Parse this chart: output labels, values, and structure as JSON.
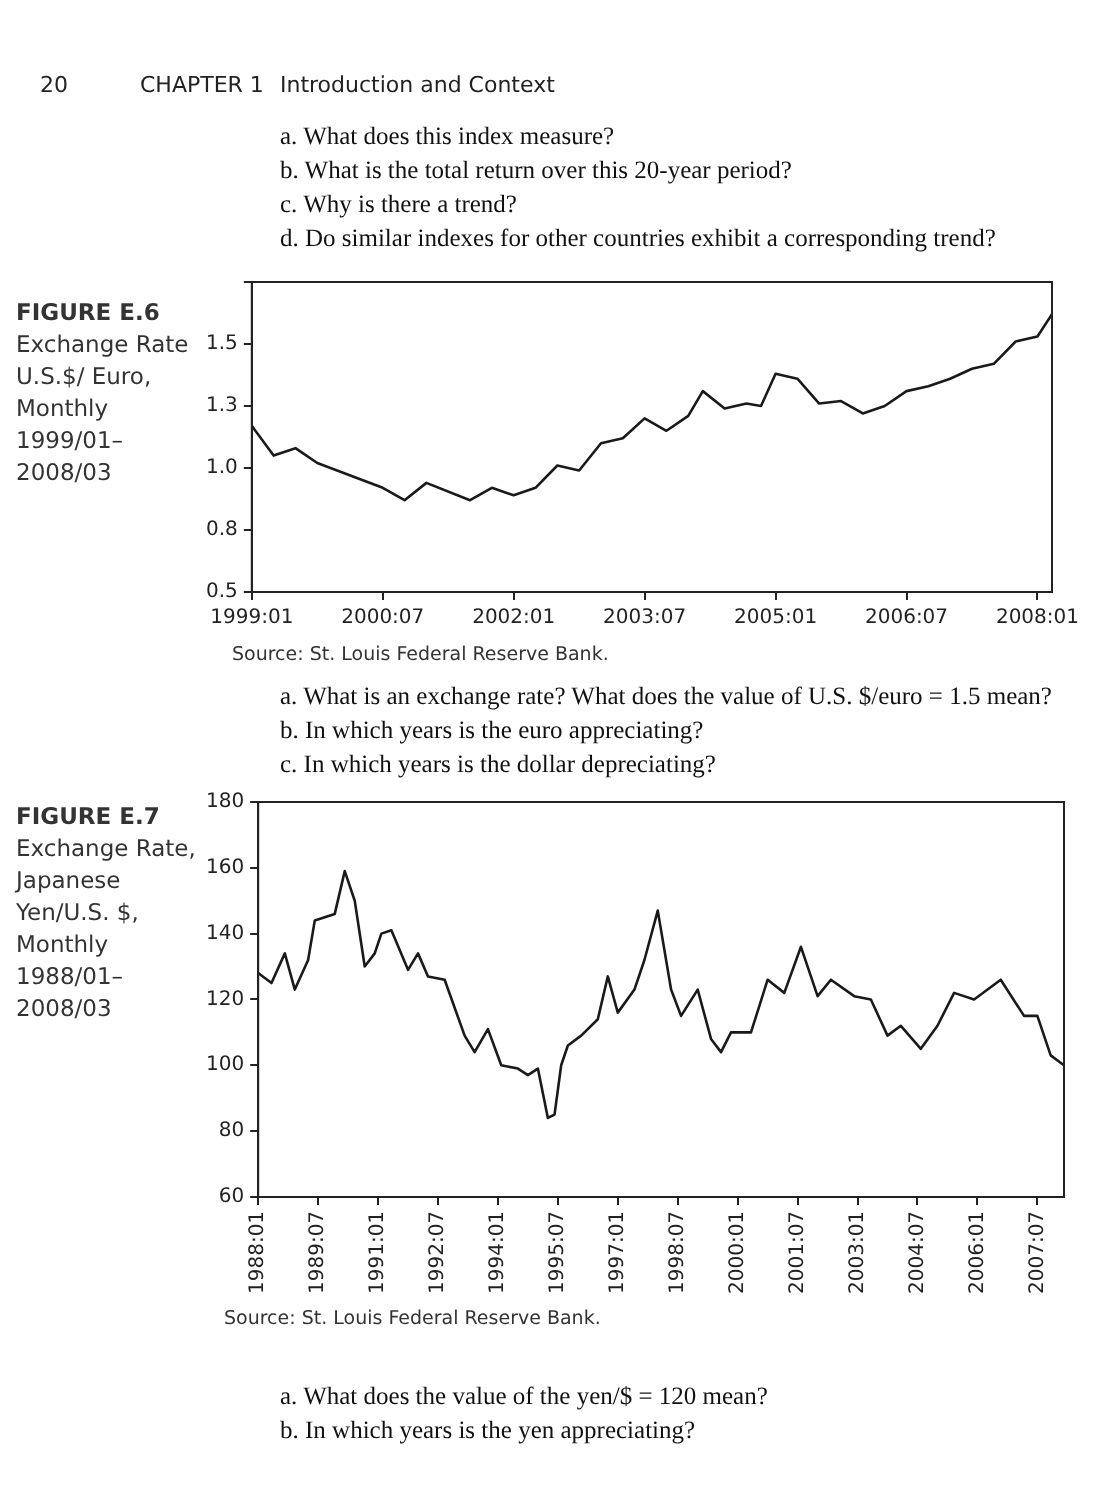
{
  "chart_data": [
    {
      "type": "line",
      "title": "FIGURE E.6",
      "subtitle": "Exchange Rate U.S.$/ Euro, Monthly 1999/01–2008/03",
      "marker": "none",
      "color": "#1a1a1a",
      "annotations": [
        "20",
        "CHAPTER 1",
        "Introduction and Context",
        "a. What does this index measure?",
        "b. What is the total return over this 20-year period?",
        "c. Why is there a trend?",
        "d. Do similar indexes for other countries exhibit a corresponding trend?",
        "Source: St. Louis Federal Reserve Bank.",
        "a. What is an exchange rate? What does the value of U.S. $/euro = 1.5 mean?",
        "b. In which years is the euro appreciating?",
        "c. In which years is the dollar depreciating?"
      ],
      "x": [
        "1999-01",
        "1999-04",
        "1999-07",
        "1999-10",
        "2000-07",
        "2000-10",
        "2001-01",
        "2001-07",
        "2001-10",
        "2002-01",
        "2002-04",
        "2002-07",
        "2002-10",
        "2003-01",
        "2003-04",
        "2003-07",
        "2003-10",
        "2004-01",
        "2004-03",
        "2004-06",
        "2004-09",
        "2004-11",
        "2005-01",
        "2005-04",
        "2005-07",
        "2005-10",
        "2006-01",
        "2006-04",
        "2006-07",
        "2006-10",
        "2007-01",
        "2007-04",
        "2007-07",
        "2007-10",
        "2008-01",
        "2008-03"
      ],
      "values": [
        1.17,
        1.05,
        1.08,
        1.02,
        0.92,
        0.87,
        0.94,
        0.87,
        0.92,
        0.89,
        0.92,
        1.01,
        0.99,
        1.1,
        1.12,
        1.2,
        1.15,
        1.21,
        1.31,
        1.24,
        1.26,
        1.25,
        1.38,
        1.36,
        1.26,
        1.27,
        1.22,
        1.25,
        1.31,
        1.33,
        1.36,
        1.4,
        1.42,
        1.51,
        1.53,
        1.62
      ],
      "xlim": [
        "1999-01",
        "2008-03"
      ],
      "xticks": [
        {
          "value": "1999-01",
          "label": "1999:01"
        },
        {
          "value": "2000-07",
          "label": "2000:07"
        },
        {
          "value": "2002-01",
          "label": "2002:01"
        },
        {
          "value": "2003-07",
          "label": "2003:07"
        },
        {
          "value": "2005-01",
          "label": "2005:01"
        },
        {
          "value": "2006-07",
          "label": "2006:07"
        },
        {
          "value": "2008-01",
          "label": "2008:01"
        }
      ],
      "ylim": [
        0.5,
        1.75
      ],
      "yticks": [
        0.5,
        {
          "value": 0.75,
          "label": "0.8"
        },
        {
          "value": 1,
          "label": "1.0"
        },
        {
          "value": 1.25,
          "label": "1.3"
        },
        1.5,
        {
          "value": 1.75,
          "label": null
        }
      ]
    },
    {
      "type": "line",
      "title": "FIGURE E.7",
      "subtitle": "Exchange Rate, Japanese Yen/U.S. $, Monthly 1988/01–2008/03",
      "marker": "none",
      "color": "#1a1a1a",
      "annotations": [
        "Source: St. Louis Federal Reserve Bank.",
        "a. What does the value of the yen/$ = 120 mean?",
        "b. In which years is the yen appreciating?"
      ],
      "x": [
        "1988-01",
        "1988-05",
        "1988-09",
        "1988-12",
        "1989-04",
        "1989-06",
        "1989-12",
        "1990-03",
        "1990-06",
        "1990-09",
        "1990-12",
        "1991-02",
        "1991-05",
        "1991-10",
        "1992-01",
        "1992-04",
        "1992-09",
        "1993-03",
        "1993-06",
        "1993-10",
        "1994-02",
        "1994-07",
        "1994-10",
        "1995-01",
        "1995-04",
        "1995-06",
        "1995-08",
        "1995-10",
        "1996-02",
        "1996-07",
        "1996-10",
        "1997-01",
        "1997-06",
        "1997-09",
        "1998-01",
        "1998-05",
        "1998-08",
        "1999-01",
        "1999-05",
        "1999-08",
        "1999-11",
        "2000-05",
        "2000-10",
        "2001-03",
        "2001-08",
        "2002-01",
        "2002-05",
        "2002-12",
        "2003-05",
        "2003-10",
        "2004-02",
        "2004-08",
        "2005-01",
        "2005-06",
        "2005-12",
        "2006-08",
        "2007-03",
        "2007-07",
        "2007-11",
        "2008-03"
      ],
      "values": [
        128,
        125,
        134,
        123,
        132,
        144,
        146,
        159,
        150,
        130,
        134,
        140,
        141,
        129,
        134,
        127,
        126,
        109,
        104,
        111,
        100,
        99,
        97,
        99,
        84,
        85,
        100,
        106,
        109,
        114,
        127,
        116,
        123,
        132,
        147,
        123,
        115,
        123,
        108,
        104,
        110,
        110,
        126,
        122,
        136,
        121,
        126,
        121,
        120,
        109,
        112,
        105,
        112,
        122,
        120,
        126,
        115,
        115,
        103,
        100
      ],
      "xlim": [
        "1988-01",
        "2008-03"
      ],
      "xticks": [
        {
          "value": "1988-01",
          "label": "1988:01"
        },
        {
          "value": "1989-07",
          "label": "1989:07"
        },
        {
          "value": "1991-01",
          "label": "1991:01"
        },
        {
          "value": "1992-07",
          "label": "1992:07"
        },
        {
          "value": "1994-01",
          "label": "1994:01"
        },
        {
          "value": "1995-07",
          "label": "1995:07"
        },
        {
          "value": "1997-01",
          "label": "1997:01"
        },
        {
          "value": "1998-07",
          "label": "1998:07"
        },
        {
          "value": "2000-01",
          "label": "2000:01"
        },
        {
          "value": "2001-07",
          "label": "2001:07"
        },
        {
          "value": "2003-01",
          "label": "2003:01"
        },
        {
          "value": "2004-07",
          "label": "2004:07"
        },
        {
          "value": "2006-01",
          "label": "2006:01"
        },
        {
          "value": "2007-07",
          "label": "2007:07"
        }
      ],
      "ylim": [
        60,
        180
      ],
      "yticks": [
        60,
        80,
        100,
        120,
        140,
        160,
        180
      ]
    }
  ]
}
